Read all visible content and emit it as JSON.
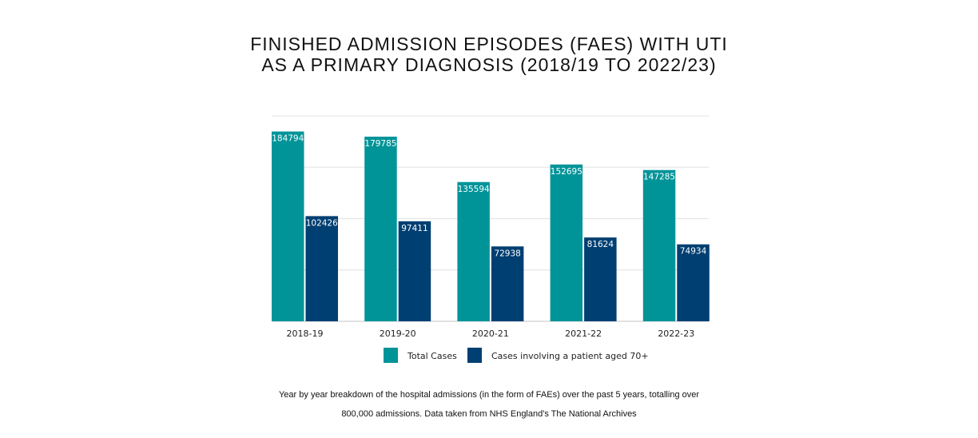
{
  "chart_data": {
    "type": "bar",
    "title_lines": [
      "FINISHED ADMISSION EPISODES (FAES) WITH UTI",
      "AS A PRIMARY DIAGNOSIS (2018/19 TO 2022/23)"
    ],
    "categories": [
      "2018-19",
      "2019-20",
      "2020-21",
      "2021-22",
      "2022-23"
    ],
    "series": [
      {
        "name": "Total Cases",
        "color": "#009499",
        "values": [
          184794,
          179785,
          135594,
          152695,
          147285
        ]
      },
      {
        "name": "Cases involving a patient aged 70+",
        "color": "#003f72",
        "values": [
          102426,
          97411,
          72938,
          81624,
          74934
        ]
      }
    ],
    "ylim": [
      0,
      200000
    ],
    "y_gridlines": [
      0,
      50000,
      100000,
      150000,
      200000
    ],
    "y_tick_labels_shown": false,
    "grid": true,
    "data_labels": true,
    "legend_placement": "bottom",
    "caption_lines": [
      "Year by year breakdown of the hospital admissions (in the form of FAEs) over the past 5 years, totalling over",
      "800,000 admissions. Data taken from NHS England's The National Archives"
    ]
  }
}
